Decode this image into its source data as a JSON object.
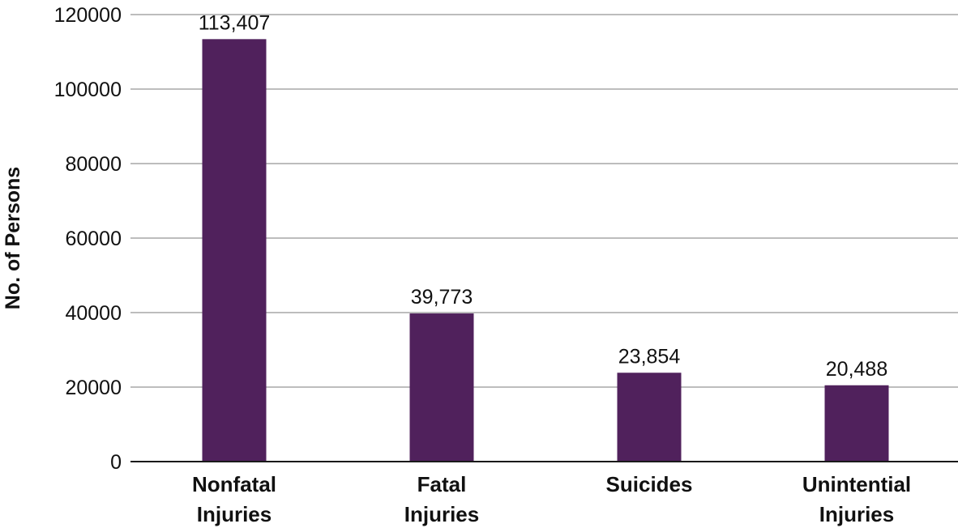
{
  "chart_data": {
    "type": "bar",
    "categories": [
      [
        "Nonfatal",
        "Injuries"
      ],
      [
        "Fatal",
        "Injuries"
      ],
      [
        "Suicides"
      ],
      [
        "Unintential",
        "Injuries"
      ]
    ],
    "values": [
      113407,
      39773,
      23854,
      20488
    ],
    "data_labels": [
      "113,407",
      "39,773",
      "23,854",
      "20,488"
    ],
    "ylabel": "No. of Persons",
    "ylim": [
      0,
      120000
    ],
    "yticks": [
      0,
      20000,
      40000,
      60000,
      80000,
      100000,
      120000
    ],
    "ytick_labels": [
      "0",
      "20000",
      "40000",
      "60000",
      "80000",
      "100000",
      "120000"
    ],
    "grid": true,
    "bar_color": "#50215c",
    "grid_color": "#bdbdbd"
  }
}
